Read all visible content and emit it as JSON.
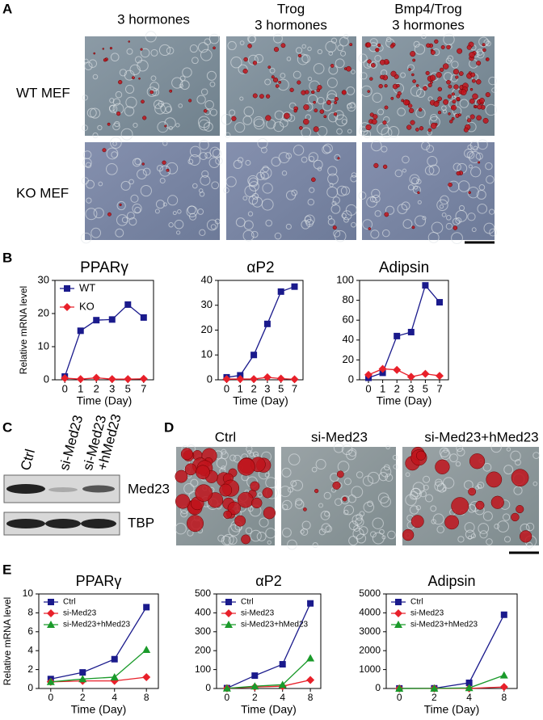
{
  "figure": {
    "panel_labels": [
      "A",
      "B",
      "C",
      "D",
      "E"
    ],
    "panel_a": {
      "columns": [
        [
          "3 hormones"
        ],
        [
          "Trog",
          "3 hormones"
        ],
        [
          "Bmp4/Trog",
          "3 hormones"
        ]
      ],
      "rows": [
        "WT MEF",
        "KO MEF"
      ]
    },
    "panel_c": {
      "lanes": [
        [
          "Ctrl"
        ],
        [
          "si-Med23"
        ],
        [
          "si-Med23",
          "+hMed23"
        ]
      ],
      "proteins": [
        "Med23",
        "TBP"
      ]
    },
    "panel_d": {
      "columns": [
        "Ctrl",
        "si-Med23",
        "si-Med23+hMed23"
      ]
    }
  },
  "chart_data": [
    {
      "type": "line",
      "title": "PPARγ",
      "xlabel": "Time (Day)",
      "ylabel": "Relative mRNA level",
      "categories": [
        "0",
        "1",
        "2",
        "3",
        "5",
        "7"
      ],
      "series": [
        {
          "name": "WT",
          "color": "#1a1a8c",
          "marker": "square",
          "values": [
            1,
            14.8,
            18,
            18.2,
            22.7,
            18.8
          ]
        },
        {
          "name": "KO",
          "color": "#e8202a",
          "marker": "diamond",
          "values": [
            0.5,
            0.2,
            0.6,
            0.2,
            0.2,
            0.3
          ]
        }
      ],
      "ylim": [
        0,
        30
      ],
      "yticks": [
        0,
        10,
        20,
        30
      ],
      "legend": "upper left"
    },
    {
      "type": "line",
      "title": "αP2",
      "xlabel": "Time (Day)",
      "categories": [
        "0",
        "1",
        "2",
        "3",
        "5",
        "7"
      ],
      "series": [
        {
          "color": "#1a1a8c",
          "marker": "square",
          "values": [
            1,
            1.8,
            10,
            22.5,
            35.5,
            37.5
          ]
        },
        {
          "color": "#e8202a",
          "marker": "diamond",
          "values": [
            0.3,
            0.3,
            0.3,
            1,
            0.5,
            0.2
          ]
        }
      ],
      "ylim": [
        0,
        40
      ],
      "yticks": [
        0,
        10,
        20,
        30,
        40
      ]
    },
    {
      "type": "line",
      "title": "Adipsin",
      "xlabel": "Time (Day)",
      "categories": [
        "0",
        "1",
        "2",
        "3",
        "5",
        "7"
      ],
      "series": [
        {
          "color": "#1a1a8c",
          "marker": "square",
          "values": [
            2,
            7,
            44,
            48,
            95,
            78
          ]
        },
        {
          "color": "#e8202a",
          "marker": "diamond",
          "values": [
            5,
            11,
            10,
            3,
            6,
            4
          ]
        }
      ],
      "ylim": [
        0,
        100
      ],
      "yticks": [
        0,
        20,
        40,
        60,
        80,
        100
      ]
    },
    {
      "type": "line",
      "title": "PPARγ",
      "xlabel": "Time (Day)",
      "ylabel": "Relative mRNA level",
      "categories": [
        "0",
        "2",
        "4",
        "8"
      ],
      "series": [
        {
          "name": "Ctrl",
          "color": "#1a1a8c",
          "marker": "square",
          "values": [
            1,
            1.7,
            3.1,
            8.6
          ]
        },
        {
          "name": "si-Med23",
          "color": "#e8202a",
          "marker": "diamond",
          "values": [
            0.7,
            0.8,
            0.8,
            1.2
          ]
        },
        {
          "name": "si-Med23+hMed23",
          "color": "#1a9a2a",
          "marker": "triangle",
          "values": [
            0.7,
            1.0,
            1.2,
            4.1
          ]
        }
      ],
      "ylim": [
        0,
        10
      ],
      "yticks": [
        0,
        2,
        4,
        6,
        8,
        10
      ],
      "legend": "upper left"
    },
    {
      "type": "line",
      "title": "αP2",
      "xlabel": "Time (Day)",
      "categories": [
        "0",
        "2",
        "4",
        "8"
      ],
      "series": [
        {
          "name": "Ctrl",
          "color": "#1a1a8c",
          "marker": "square",
          "values": [
            2,
            68,
            128,
            450
          ]
        },
        {
          "name": "si-Med23",
          "color": "#e8202a",
          "marker": "diamond",
          "values": [
            1,
            8,
            12,
            45
          ]
        },
        {
          "name": "si-Med23+hMed23",
          "color": "#1a9a2a",
          "marker": "triangle",
          "values": [
            1,
            12,
            20,
            160
          ]
        }
      ],
      "ylim": [
        0,
        500
      ],
      "yticks": [
        0,
        100,
        200,
        300,
        400,
        500
      ],
      "legend": "upper left"
    },
    {
      "type": "line",
      "title": "Adipsin",
      "xlabel": "Time (Day)",
      "categories": [
        "0",
        "2",
        "4",
        "8"
      ],
      "series": [
        {
          "name": "Ctrl",
          "color": "#1a1a8c",
          "marker": "square",
          "values": [
            5,
            10,
            300,
            3900
          ]
        },
        {
          "name": "si-Med23",
          "color": "#e8202a",
          "marker": "diamond",
          "values": [
            1,
            2,
            5,
            80
          ]
        },
        {
          "name": "si-Med23+hMed23",
          "color": "#1a9a2a",
          "marker": "triangle",
          "values": [
            2,
            5,
            30,
            700
          ]
        }
      ],
      "ylim": [
        0,
        5000
      ],
      "yticks": [
        0,
        1000,
        2000,
        3000,
        4000,
        5000
      ],
      "legend": "upper left"
    }
  ]
}
